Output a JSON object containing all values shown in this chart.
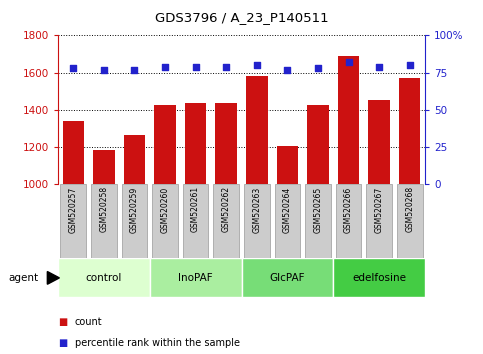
{
  "title": "GDS3796 / A_23_P140511",
  "samples": [
    "GSM520257",
    "GSM520258",
    "GSM520259",
    "GSM520260",
    "GSM520261",
    "GSM520262",
    "GSM520263",
    "GSM520264",
    "GSM520265",
    "GSM520266",
    "GSM520267",
    "GSM520268"
  ],
  "counts": [
    1340,
    1185,
    1265,
    1425,
    1435,
    1435,
    1580,
    1205,
    1425,
    1690,
    1455,
    1570
  ],
  "percentiles": [
    78,
    77,
    77,
    79,
    79,
    79,
    80,
    77,
    78,
    82,
    79,
    80
  ],
  "groups": [
    {
      "label": "control",
      "start": 0,
      "end": 3,
      "color": "#ddffd0"
    },
    {
      "label": "InoPAF",
      "start": 3,
      "end": 6,
      "color": "#aaeea0"
    },
    {
      "label": "GlcPAF",
      "start": 6,
      "end": 9,
      "color": "#77dd77"
    },
    {
      "label": "edelfosine",
      "start": 9,
      "end": 12,
      "color": "#44cc44"
    }
  ],
  "ylim_left": [
    1000,
    1800
  ],
  "yticks_left": [
    1000,
    1200,
    1400,
    1600,
    1800
  ],
  "ylim_right": [
    0,
    100
  ],
  "yticks_right": [
    0,
    25,
    50,
    75,
    100
  ],
  "bar_color": "#cc1111",
  "dot_color": "#2222cc",
  "bar_width": 0.7,
  "legend_count_color": "#cc1111",
  "legend_dot_color": "#2222cc",
  "tick_box_color": "#cccccc",
  "tick_box_edge": "#999999"
}
